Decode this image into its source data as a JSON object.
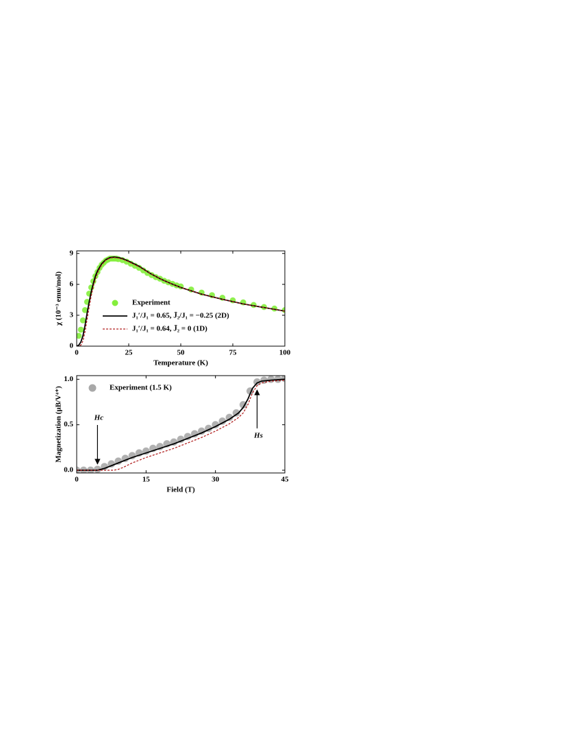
{
  "chart_data": [
    {
      "type": "line",
      "xlabel": "Temperature (K)",
      "ylabel": "χ (10⁻³ emu/mol)",
      "xlim": [
        0,
        100
      ],
      "xticks": [
        0,
        25,
        50,
        75,
        100
      ],
      "ylim": [
        0,
        9.25
      ],
      "yticks": [
        0,
        3,
        6,
        9
      ],
      "legend": "center left",
      "series": [
        {
          "name": "Experiment",
          "style": "markers",
          "color": "#84ee3c",
          "x": [
            1,
            2,
            3,
            4,
            5,
            6,
            7,
            8,
            9,
            10,
            11,
            12,
            13,
            14,
            15,
            16,
            17,
            18,
            19,
            20,
            22,
            24,
            26,
            28,
            30,
            32,
            34,
            36,
            38,
            40,
            42,
            44,
            46,
            48,
            50,
            55,
            60,
            65,
            70,
            75,
            80,
            85,
            90,
            95,
            100
          ],
          "values": [
            1.0,
            1.6,
            2.5,
            3.5,
            4.3,
            5.1,
            5.7,
            6.3,
            6.8,
            7.2,
            7.6,
            7.9,
            8.1,
            8.3,
            8.4,
            8.5,
            8.5,
            8.5,
            8.5,
            8.45,
            8.35,
            8.2,
            8.0,
            7.8,
            7.6,
            7.35,
            7.1,
            6.9,
            6.7,
            6.55,
            6.35,
            6.2,
            6.05,
            5.9,
            5.8,
            5.5,
            5.2,
            4.95,
            4.7,
            4.45,
            4.25,
            4.0,
            3.8,
            3.65,
            3.5
          ]
        },
        {
          "name": "J₁′/J₁ = 0.65, J̄₂/J₁ = −0.25 (2D)",
          "style": "line",
          "linestyle": "solid",
          "color": "#000000",
          "x": [
            0,
            1,
            2,
            3,
            4,
            5,
            6,
            7,
            8,
            9,
            10,
            12,
            14,
            16,
            18,
            20,
            22,
            25,
            30,
            35,
            40,
            45,
            50,
            60,
            70,
            80,
            90,
            100
          ],
          "values": [
            0,
            0.1,
            0.4,
            1.0,
            2.0,
            3.2,
            4.3,
            5.3,
            6.1,
            6.8,
            7.3,
            8.0,
            8.4,
            8.6,
            8.65,
            8.6,
            8.5,
            8.25,
            7.75,
            7.1,
            6.55,
            6.1,
            5.7,
            5.05,
            4.55,
            4.1,
            3.75,
            3.4
          ]
        },
        {
          "name": "J₁′/J₁ = 0.64, J̄₂ = 0 (1D)",
          "style": "line",
          "linestyle": "dashed",
          "color": "#b22222",
          "x": [
            0,
            1,
            2,
            3,
            4,
            5,
            6,
            7,
            8,
            9,
            10,
            12,
            14,
            16,
            18,
            20,
            22,
            25,
            30,
            35,
            40,
            45,
            50,
            60,
            70,
            80,
            90,
            100
          ],
          "values": [
            0,
            0,
            0.1,
            0.5,
            1.4,
            2.6,
            3.8,
            4.9,
            5.8,
            6.5,
            7.1,
            7.9,
            8.35,
            8.55,
            8.6,
            8.55,
            8.45,
            8.2,
            7.7,
            7.1,
            6.55,
            6.1,
            5.7,
            5.05,
            4.55,
            4.1,
            3.75,
            3.4
          ]
        }
      ]
    },
    {
      "type": "line",
      "xlabel": "Field (T)",
      "ylabel": "Magnetization (μB/V⁴⁺)",
      "xlim": [
        0,
        45
      ],
      "xticks": [
        0,
        15,
        30,
        45
      ],
      "ylim": [
        -0.03,
        1.04
      ],
      "yticks": [
        {
          "value": 0,
          "label": "0.0"
        },
        {
          "value": 0.5,
          "label": "0.5"
        },
        {
          "value": 1,
          "label": "1.0"
        }
      ],
      "legend": "upper left",
      "series": [
        {
          "name": "Experiment (1.5 K)",
          "style": "markers",
          "color": "#a8a8a8",
          "x": [
            0,
            1.5,
            3,
            4.5,
            6,
            7.5,
            9,
            10.5,
            12,
            13.5,
            15,
            16.5,
            18,
            19.5,
            21,
            22.5,
            24,
            25.5,
            27,
            28.5,
            30,
            31.5,
            33,
            34.5,
            36,
            37.5,
            39,
            40.5,
            42,
            43.5,
            45
          ],
          "values": [
            0,
            0,
            0,
            0.01,
            0.04,
            0.07,
            0.1,
            0.13,
            0.16,
            0.19,
            0.21,
            0.24,
            0.26,
            0.29,
            0.31,
            0.34,
            0.37,
            0.4,
            0.43,
            0.46,
            0.5,
            0.54,
            0.58,
            0.63,
            0.72,
            0.87,
            0.97,
            0.99,
            1.0,
            1.0,
            1.01
          ]
        },
        {
          "style": "line",
          "linestyle": "solid",
          "color": "#000000",
          "x": [
            0,
            3,
            4.5,
            6,
            9,
            12,
            15,
            18,
            21,
            24,
            27,
            30,
            33,
            35,
            36,
            37,
            38,
            39,
            40,
            42,
            45
          ],
          "values": [
            0,
            0,
            0,
            0.02,
            0.08,
            0.14,
            0.19,
            0.24,
            0.29,
            0.35,
            0.41,
            0.48,
            0.56,
            0.63,
            0.69,
            0.78,
            0.9,
            0.96,
            0.98,
            0.99,
            1.0
          ]
        },
        {
          "style": "line",
          "linestyle": "dashed",
          "color": "#b22222",
          "x": [
            0,
            6,
            8,
            9,
            10,
            12,
            15,
            18,
            21,
            24,
            27,
            30,
            33,
            35,
            36,
            37,
            38,
            39,
            40,
            42,
            45
          ],
          "values": [
            0,
            0,
            0,
            0.01,
            0.03,
            0.08,
            0.14,
            0.19,
            0.24,
            0.3,
            0.36,
            0.43,
            0.51,
            0.58,
            0.63,
            0.72,
            0.85,
            0.93,
            0.96,
            0.98,
            0.99
          ]
        }
      ],
      "annotations": [
        {
          "text": "Hc",
          "x": 4.5,
          "direction": "down"
        },
        {
          "text": "Hs",
          "x": 39,
          "direction": "up"
        }
      ]
    }
  ]
}
